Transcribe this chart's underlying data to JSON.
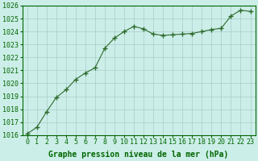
{
  "x": [
    0,
    1,
    2,
    3,
    4,
    5,
    6,
    7,
    8,
    9,
    10,
    11,
    12,
    13,
    14,
    15,
    16,
    17,
    18,
    19,
    20,
    21,
    22,
    23
  ],
  "y": [
    1016.1,
    1016.6,
    1017.8,
    1018.9,
    1019.5,
    1020.3,
    1020.8,
    1021.2,
    1022.7,
    1023.5,
    1024.0,
    1024.4,
    1024.2,
    1023.8,
    1023.7,
    1023.75,
    1023.8,
    1023.85,
    1024.0,
    1024.15,
    1024.25,
    1025.2,
    1025.65,
    1025.55
  ],
  "line_color": "#2d6a2d",
  "marker_color": "#2d6a2d",
  "bg_color": "#cceee8",
  "grid_color": "#aacccc",
  "xlabel": "Graphe pression niveau de la mer (hPa)",
  "ylim": [
    1016,
    1026
  ],
  "xlim_min": -0.5,
  "xlim_max": 23.5,
  "yticks": [
    1016,
    1017,
    1018,
    1019,
    1020,
    1021,
    1022,
    1023,
    1024,
    1025,
    1026
  ],
  "xticks": [
    0,
    1,
    2,
    3,
    4,
    5,
    6,
    7,
    8,
    9,
    10,
    11,
    12,
    13,
    14,
    15,
    16,
    17,
    18,
    19,
    20,
    21,
    22,
    23
  ],
  "xlabel_color": "#006600",
  "tick_color": "#006600",
  "axis_color": "#006600",
  "fontsize_xlabel": 7.0,
  "fontsize_ticks": 6.0
}
